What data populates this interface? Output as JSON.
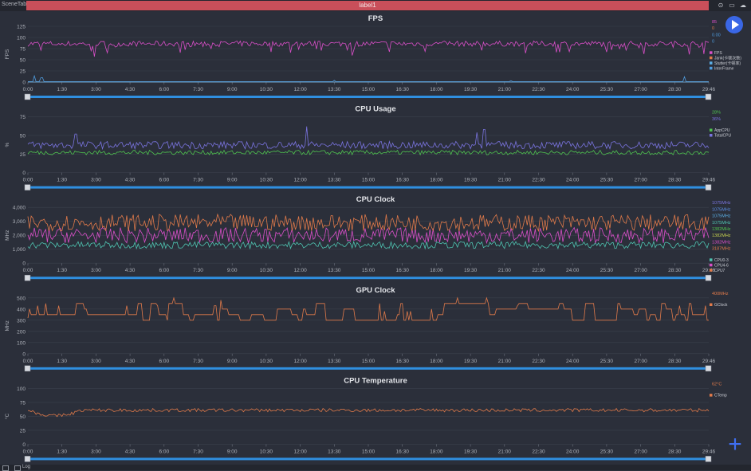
{
  "app": {
    "scene_tab": "SceneTab",
    "top_label": "label1",
    "log_label": "Log"
  },
  "x_ticks": [
    "0:00",
    "1:30",
    "3:00",
    "4:30",
    "6:00",
    "7:30",
    "9:00",
    "10:30",
    "12:00",
    "13:30",
    "15:00",
    "16:30",
    "18:00",
    "19:30",
    "21:00",
    "22:30",
    "24:00",
    "25:30",
    "27:00",
    "28:30",
    "29:46"
  ],
  "slider": {
    "start_label": "0",
    "end_label": "29:46"
  },
  "chart_data": [
    {
      "type": "line",
      "title": "FPS",
      "ylabel": "FPS",
      "ylim": [
        0,
        125
      ],
      "yticks": [
        "0",
        "25",
        "50",
        "75",
        "100",
        "125"
      ],
      "x_range_seconds": [
        0,
        1786
      ],
      "legend_values": [
        {
          "text": "85",
          "color": "#d94fc8"
        },
        {
          "text": "0",
          "color": "#e07a4a"
        },
        {
          "text": "0.00",
          "color": "#4f9de0"
        },
        {
          "text": "0",
          "color": "#4f9de0"
        }
      ],
      "series": [
        {
          "name": "FPS",
          "color": "#d94fc8",
          "base": 86,
          "noise": 6,
          "dip_prob": 0.12,
          "dip": 25
        },
        {
          "name": "Jank(卡顿次数)",
          "color": "#e07a4a",
          "base": 0,
          "noise": 0
        },
        {
          "name": "Stutter(卡顿率)",
          "color": "#5bb0e8",
          "base": 0,
          "noise": 0
        },
        {
          "name": "InterFrame",
          "color": "#4f9de0",
          "base": 1,
          "noise": 0,
          "spikes": [
            [
              0.01,
              14
            ],
            [
              0.02,
              10
            ],
            [
              0.45,
              4
            ],
            [
              0.71,
              3
            ],
            [
              0.965,
              12
            ]
          ]
        }
      ]
    },
    {
      "type": "line",
      "title": "CPU Usage",
      "ylabel": "%",
      "ylim": [
        0,
        75
      ],
      "yticks": [
        "0",
        "25",
        "50",
        "75"
      ],
      "x_range_seconds": [
        0,
        1786
      ],
      "legend_values": [
        {
          "text": "28%",
          "color": "#4fc34f"
        },
        {
          "text": "36%",
          "color": "#7a74e0"
        }
      ],
      "series": [
        {
          "name": "AppCPU",
          "color": "#4fc34f",
          "base": 27,
          "noise": 3
        },
        {
          "name": "TotalCPU",
          "color": "#7a74e0",
          "base": 37,
          "noise": 5,
          "spikes": [
            [
              0.07,
              52
            ],
            [
              0.41,
              62
            ],
            [
              0.66,
              54
            ],
            [
              0.67,
              58
            ]
          ]
        }
      ]
    },
    {
      "type": "line",
      "title": "CPU Clock",
      "ylabel": "MHz",
      "ylim": [
        0,
        4000
      ],
      "yticks": [
        "0",
        "1,000",
        "2,000",
        "3,000",
        "4,000"
      ],
      "x_range_seconds": [
        0,
        1786
      ],
      "legend_values": [
        {
          "text": "1075MHz",
          "color": "#7a74e0"
        },
        {
          "text": "1075MHz",
          "color": "#5b8fe8"
        },
        {
          "text": "1075MHz",
          "color": "#5bb0e8"
        },
        {
          "text": "1075MHz",
          "color": "#4fc3b0"
        },
        {
          "text": "1382MHz",
          "color": "#4fc34f"
        },
        {
          "text": "1382MHz",
          "color": "#c8d44f"
        },
        {
          "text": "1382MHz",
          "color": "#d94fc8"
        },
        {
          "text": "3187MHz",
          "color": "#e07a4a"
        }
      ],
      "series": [
        {
          "name": "CPU0-3",
          "color": "#4fc3b0",
          "base": 1300,
          "noise": 250
        },
        {
          "name": "CPU4-6",
          "color": "#d94fc8",
          "base": 2000,
          "noise": 550
        },
        {
          "name": "CPU7",
          "color": "#e07a4a",
          "base": 2900,
          "noise": 600
        }
      ]
    },
    {
      "type": "line",
      "title": "GPU Clock",
      "ylabel": "MHz",
      "ylim": [
        0,
        500
      ],
      "yticks": [
        "0",
        "100",
        "200",
        "300",
        "400",
        "500"
      ],
      "x_range_seconds": [
        0,
        1786
      ],
      "legend_values": [
        {
          "text": "400MHz",
          "color": "#e07a4a"
        }
      ],
      "series": [
        {
          "name": "GClock",
          "color": "#e07a4a",
          "base": 320,
          "noise": 0,
          "step": true
        }
      ]
    },
    {
      "type": "line",
      "title": "CPU Temperature",
      "ylabel": "°C",
      "ylim": [
        0,
        100
      ],
      "yticks": [
        "0",
        "25",
        "50",
        "75",
        "100"
      ],
      "x_range_seconds": [
        0,
        1786
      ],
      "legend_values": [
        {
          "text": "62°C",
          "color": "#e07a4a"
        }
      ],
      "series": [
        {
          "name": "CTemp",
          "color": "#e07a4a",
          "base": 61,
          "noise": 3,
          "early_dip": true
        }
      ]
    }
  ]
}
